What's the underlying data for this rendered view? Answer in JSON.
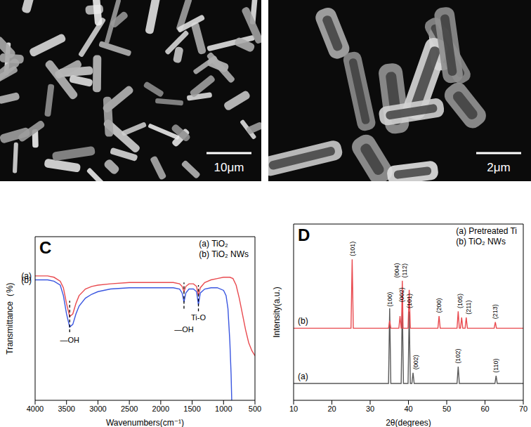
{
  "images": [
    {
      "scale_bar": "10μm"
    },
    {
      "scale_bar": "2μm"
    }
  ],
  "chart_data": [
    {
      "type": "line",
      "panel": "C",
      "x_label": "Wavenumbers(cm⁻¹)",
      "y_label": "Transmittance（%)",
      "xlim": [
        4000,
        500
      ],
      "xticks": [
        4000,
        3500,
        3000,
        2500,
        2000,
        1500,
        1000,
        500
      ],
      "ylim": [
        0,
        125
      ],
      "tick_labels": "x",
      "legend": "upper right",
      "grid": false,
      "series": [
        {
          "name": "(a) TiO₂",
          "label": "(a)",
          "color": "#e94a4f",
          "x": [
            4000,
            3900,
            3800,
            3700,
            3600,
            3550,
            3500,
            3450,
            3400,
            3350,
            3300,
            3200,
            3100,
            3000,
            2800,
            2500,
            2200,
            2000,
            1800,
            1700,
            1660,
            1630,
            1600,
            1550,
            1480,
            1430,
            1400,
            1370,
            1300,
            1200,
            1100,
            1000,
            900,
            850,
            800,
            750,
            700,
            650,
            600,
            550,
            500
          ],
          "values": [
            95,
            95,
            95,
            94,
            91,
            86,
            74,
            64,
            66,
            74,
            80,
            85,
            87,
            88,
            89,
            90,
            90,
            90,
            90,
            89,
            87,
            83,
            87,
            89,
            89,
            87,
            80,
            86,
            90,
            92,
            93,
            94,
            94,
            93,
            88,
            78,
            66,
            54,
            44,
            38,
            34
          ]
        },
        {
          "name": "(b) TiO₂ NWs",
          "label": "(b)",
          "color": "#3a56e0",
          "x": [
            4000,
            3900,
            3800,
            3700,
            3600,
            3550,
            3500,
            3450,
            3400,
            3350,
            3300,
            3200,
            3100,
            3000,
            2800,
            2500,
            2200,
            2000,
            1800,
            1700,
            1660,
            1630,
            1600,
            1550,
            1480,
            1430,
            1400,
            1370,
            1300,
            1200,
            1100,
            1000,
            960,
            930,
            900,
            880,
            870
          ],
          "values": [
            92,
            92,
            92,
            91,
            88,
            80,
            66,
            56,
            58,
            66,
            72,
            78,
            81,
            83,
            85,
            86,
            86,
            86,
            86,
            85,
            82,
            75,
            82,
            85,
            85,
            83,
            73,
            82,
            85,
            86,
            86,
            84,
            80,
            70,
            45,
            20,
            0
          ]
        }
      ],
      "annotations": [
        {
          "x": 3450,
          "y": 46,
          "text": "—OH",
          "line": [
            52,
            76
          ]
        },
        {
          "x": 1630,
          "y": 54,
          "text": "—OH",
          "line": [
            70,
            90
          ]
        },
        {
          "x": 1400,
          "y": 63,
          "text": "Ti-O",
          "line": [
            68,
            88
          ]
        }
      ]
    },
    {
      "type": "line",
      "panel": "D",
      "x_label": "2θ(degrees)",
      "y_label": "Intensity(a.u.)",
      "xlim": [
        10,
        70
      ],
      "xticks": [
        10,
        20,
        30,
        40,
        50,
        60,
        70
      ],
      "ylim": [
        0,
        115
      ],
      "tick_labels": "x",
      "legend": "upper right",
      "grid": false,
      "series": [
        {
          "name": "(a) Pretreated Ti",
          "label": "(a)",
          "color": "#5a5a5a",
          "x": [
            10,
            34.8,
            35.1,
            35.4,
            38.1,
            38.4,
            38.7,
            39.9,
            40.2,
            40.5,
            40.9,
            41.2,
            41.5,
            52.7,
            53.0,
            53.3,
            62.6,
            62.9,
            63.2,
            70
          ],
          "values": [
            11,
            11,
            60,
            11,
            11,
            63,
            11,
            11,
            58,
            11,
            11,
            18,
            11,
            11,
            22,
            11,
            11,
            16,
            11,
            11
          ],
          "peak_labels": [
            {
              "x": 35.1,
              "y": 61,
              "label": "(100)"
            },
            {
              "x": 38.2,
              "y": 64,
              "label": "(002)"
            },
            {
              "x": 40.2,
              "y": 60,
              "label": "(101)"
            },
            {
              "x": 41.9,
              "y": 20,
              "label": "(002)"
            },
            {
              "x": 53.0,
              "y": 24,
              "label": "(102)"
            },
            {
              "x": 62.9,
              "y": 18,
              "label": "(110)"
            }
          ]
        },
        {
          "name": "(b) TiO₂ NWs",
          "label": "(b)",
          "color": "#e94a4f",
          "x": [
            10,
            25.0,
            25.3,
            25.6,
            34.8,
            35.1,
            35.4,
            37.5,
            37.8,
            38.1,
            38.2,
            38.4,
            38.6,
            39.9,
            40.2,
            40.5,
            47.7,
            48.0,
            48.3,
            52.7,
            53.0,
            53.3,
            53.6,
            53.9,
            54.2,
            54.8,
            55.1,
            55.4,
            62.4,
            62.7,
            63.0,
            70
          ],
          "values": [
            47,
            47,
            92,
            47,
            47,
            52,
            47,
            47,
            55,
            47,
            47,
            78,
            47,
            47,
            72,
            47,
            47,
            55,
            47,
            47,
            58,
            47,
            47,
            54,
            47,
            47,
            54,
            47,
            47,
            51,
            47,
            47
          ],
          "peak_labels": [
            {
              "x": 25.3,
              "y": 94,
              "label": "(101)"
            },
            {
              "x": 37.0,
              "y": 80,
              "label": "(004)"
            },
            {
              "x": 38.9,
              "y": 80,
              "label": "(112)"
            },
            {
              "x": 48.0,
              "y": 57,
              "label": "(200)"
            },
            {
              "x": 53.5,
              "y": 60,
              "label": "(105)"
            },
            {
              "x": 55.6,
              "y": 56,
              "label": "(211)"
            },
            {
              "x": 62.7,
              "y": 53,
              "label": "(213)"
            }
          ]
        }
      ]
    }
  ]
}
